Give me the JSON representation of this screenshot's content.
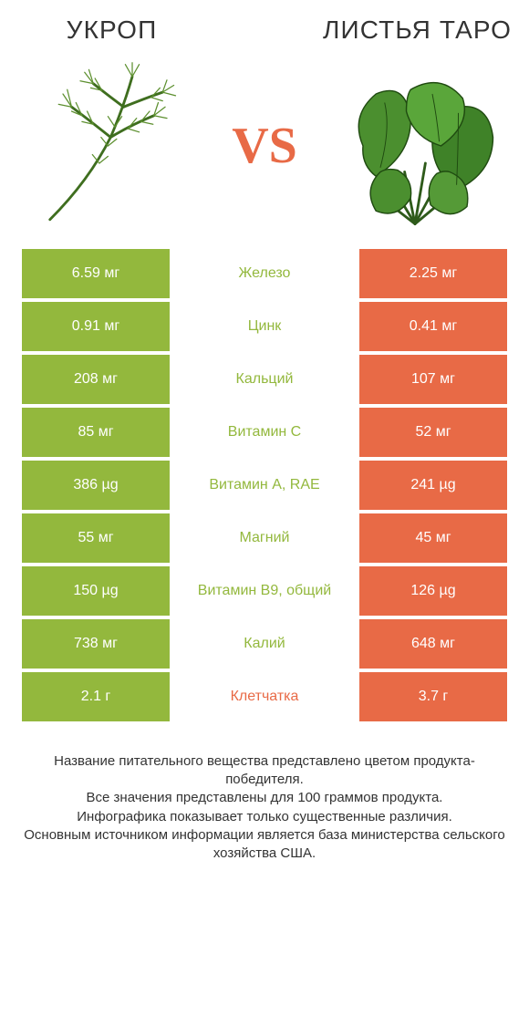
{
  "colors": {
    "green": "#93b83d",
    "orange": "#e86a46",
    "text": "#333333",
    "bg": "#ffffff"
  },
  "header": {
    "left_title": "УКРОП",
    "right_title": "ЛИСТЬЯ ТАРО",
    "vs_label": "VS"
  },
  "table": {
    "rows": [
      {
        "left": "6.59 мг",
        "label": "Железо",
        "right": "2.25 мг",
        "winner": "left"
      },
      {
        "left": "0.91 мг",
        "label": "Цинк",
        "right": "0.41 мг",
        "winner": "left"
      },
      {
        "left": "208 мг",
        "label": "Кальций",
        "right": "107 мг",
        "winner": "left"
      },
      {
        "left": "85 мг",
        "label": "Витамин C",
        "right": "52 мг",
        "winner": "left"
      },
      {
        "left": "386 µg",
        "label": "Витамин A, RAE",
        "right": "241 µg",
        "winner": "left"
      },
      {
        "left": "55 мг",
        "label": "Магний",
        "right": "45 мг",
        "winner": "left"
      },
      {
        "left": "150 µg",
        "label": "Витамин B9, общий",
        "right": "126 µg",
        "winner": "left"
      },
      {
        "left": "738 мг",
        "label": "Калий",
        "right": "648 мг",
        "winner": "left"
      },
      {
        "left": "2.1 г",
        "label": "Клетчатка",
        "right": "3.7 г",
        "winner": "right"
      }
    ]
  },
  "footer": {
    "line1": "Название питательного вещества представлено цветом продукта-победителя.",
    "line2": "Все значения представлены для 100 граммов продукта.",
    "line3": "Инфографика показывает только существенные различия.",
    "line4": "Основным источником информации является база министерства сельского хозяйства США."
  }
}
